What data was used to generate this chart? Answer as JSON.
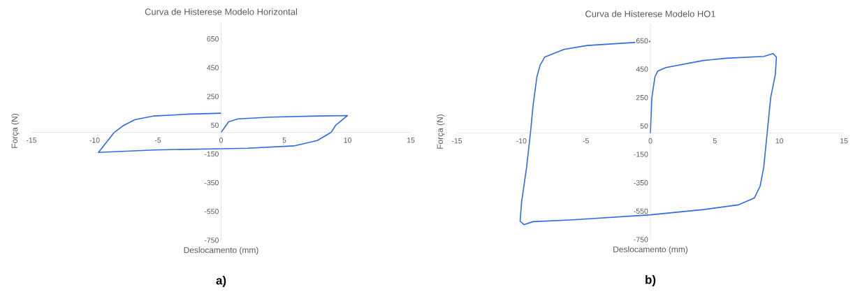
{
  "chart_data": [
    {
      "type": "line",
      "title": "Curva de Histerese Modelo Horizontal",
      "xlabel": "Deslocamento (mm)",
      "ylabel": "Força (N)",
      "xlim": [
        -15,
        15
      ],
      "ylim": [
        -750,
        770
      ],
      "xticks": [
        -15,
        -10,
        -5,
        0,
        5,
        10,
        15
      ],
      "yticks": [
        650,
        450,
        250,
        50,
        -150,
        -350,
        -550,
        -750
      ],
      "annotations": [
        "a)"
      ],
      "series": [
        {
          "color": "#2f6be0",
          "x": [
            0,
            0.59,
            1.33,
            3.9,
            7.6,
            10.0,
            9.06,
            8.7,
            7.6,
            5.75,
            2.1,
            0,
            -5.3,
            -9.7,
            -8.45,
            -7.7,
            -6.8,
            -5.3,
            -2.5,
            0
          ],
          "values": [
            0,
            73,
            94,
            106,
            114,
            117,
            49,
            0,
            -57,
            -94,
            -110,
            -114,
            -122,
            -139,
            0,
            49,
            89,
            114,
            127,
            133
          ]
        }
      ]
    },
    {
      "type": "line",
      "title": "Curva de Histerese Modelo HO1",
      "xlabel": "Deslocamento (mm)",
      "ylabel": "Força (N)",
      "xlim": [
        -15,
        15
      ],
      "ylim": [
        -750,
        770
      ],
      "xticks": [
        -15,
        -10,
        -5,
        0,
        5,
        10,
        15
      ],
      "yticks": [
        650,
        450,
        250,
        50,
        -150,
        -350,
        -550,
        -750
      ],
      "annotations": [
        "b)"
      ],
      "series": [
        {
          "color": "#2f6be0",
          "x": [
            0,
            0.11,
            0.35,
            0.57,
            1.2,
            4.1,
            5.9,
            8.8,
            9.5,
            9.77,
            9.68,
            9.32,
            9.05,
            8.78,
            8.5,
            8.06,
            6.8,
            4.1,
            0,
            -6.2,
            -9.1,
            -9.8,
            -10.1,
            -9.99,
            -9.6,
            -9.3,
            -9.09,
            -8.8,
            -8.55,
            -8.2,
            -6.7,
            -4.9,
            0
          ],
          "values": [
            0,
            248,
            396,
            437,
            461,
            511,
            527,
            540,
            560,
            535,
            412,
            248,
            0,
            -243,
            -375,
            -457,
            -506,
            -539,
            -576,
            -612,
            -624,
            -645,
            -621,
            -489,
            -243,
            0,
            199,
            396,
            478,
            535,
            589,
            617,
            645
          ]
        }
      ]
    }
  ]
}
